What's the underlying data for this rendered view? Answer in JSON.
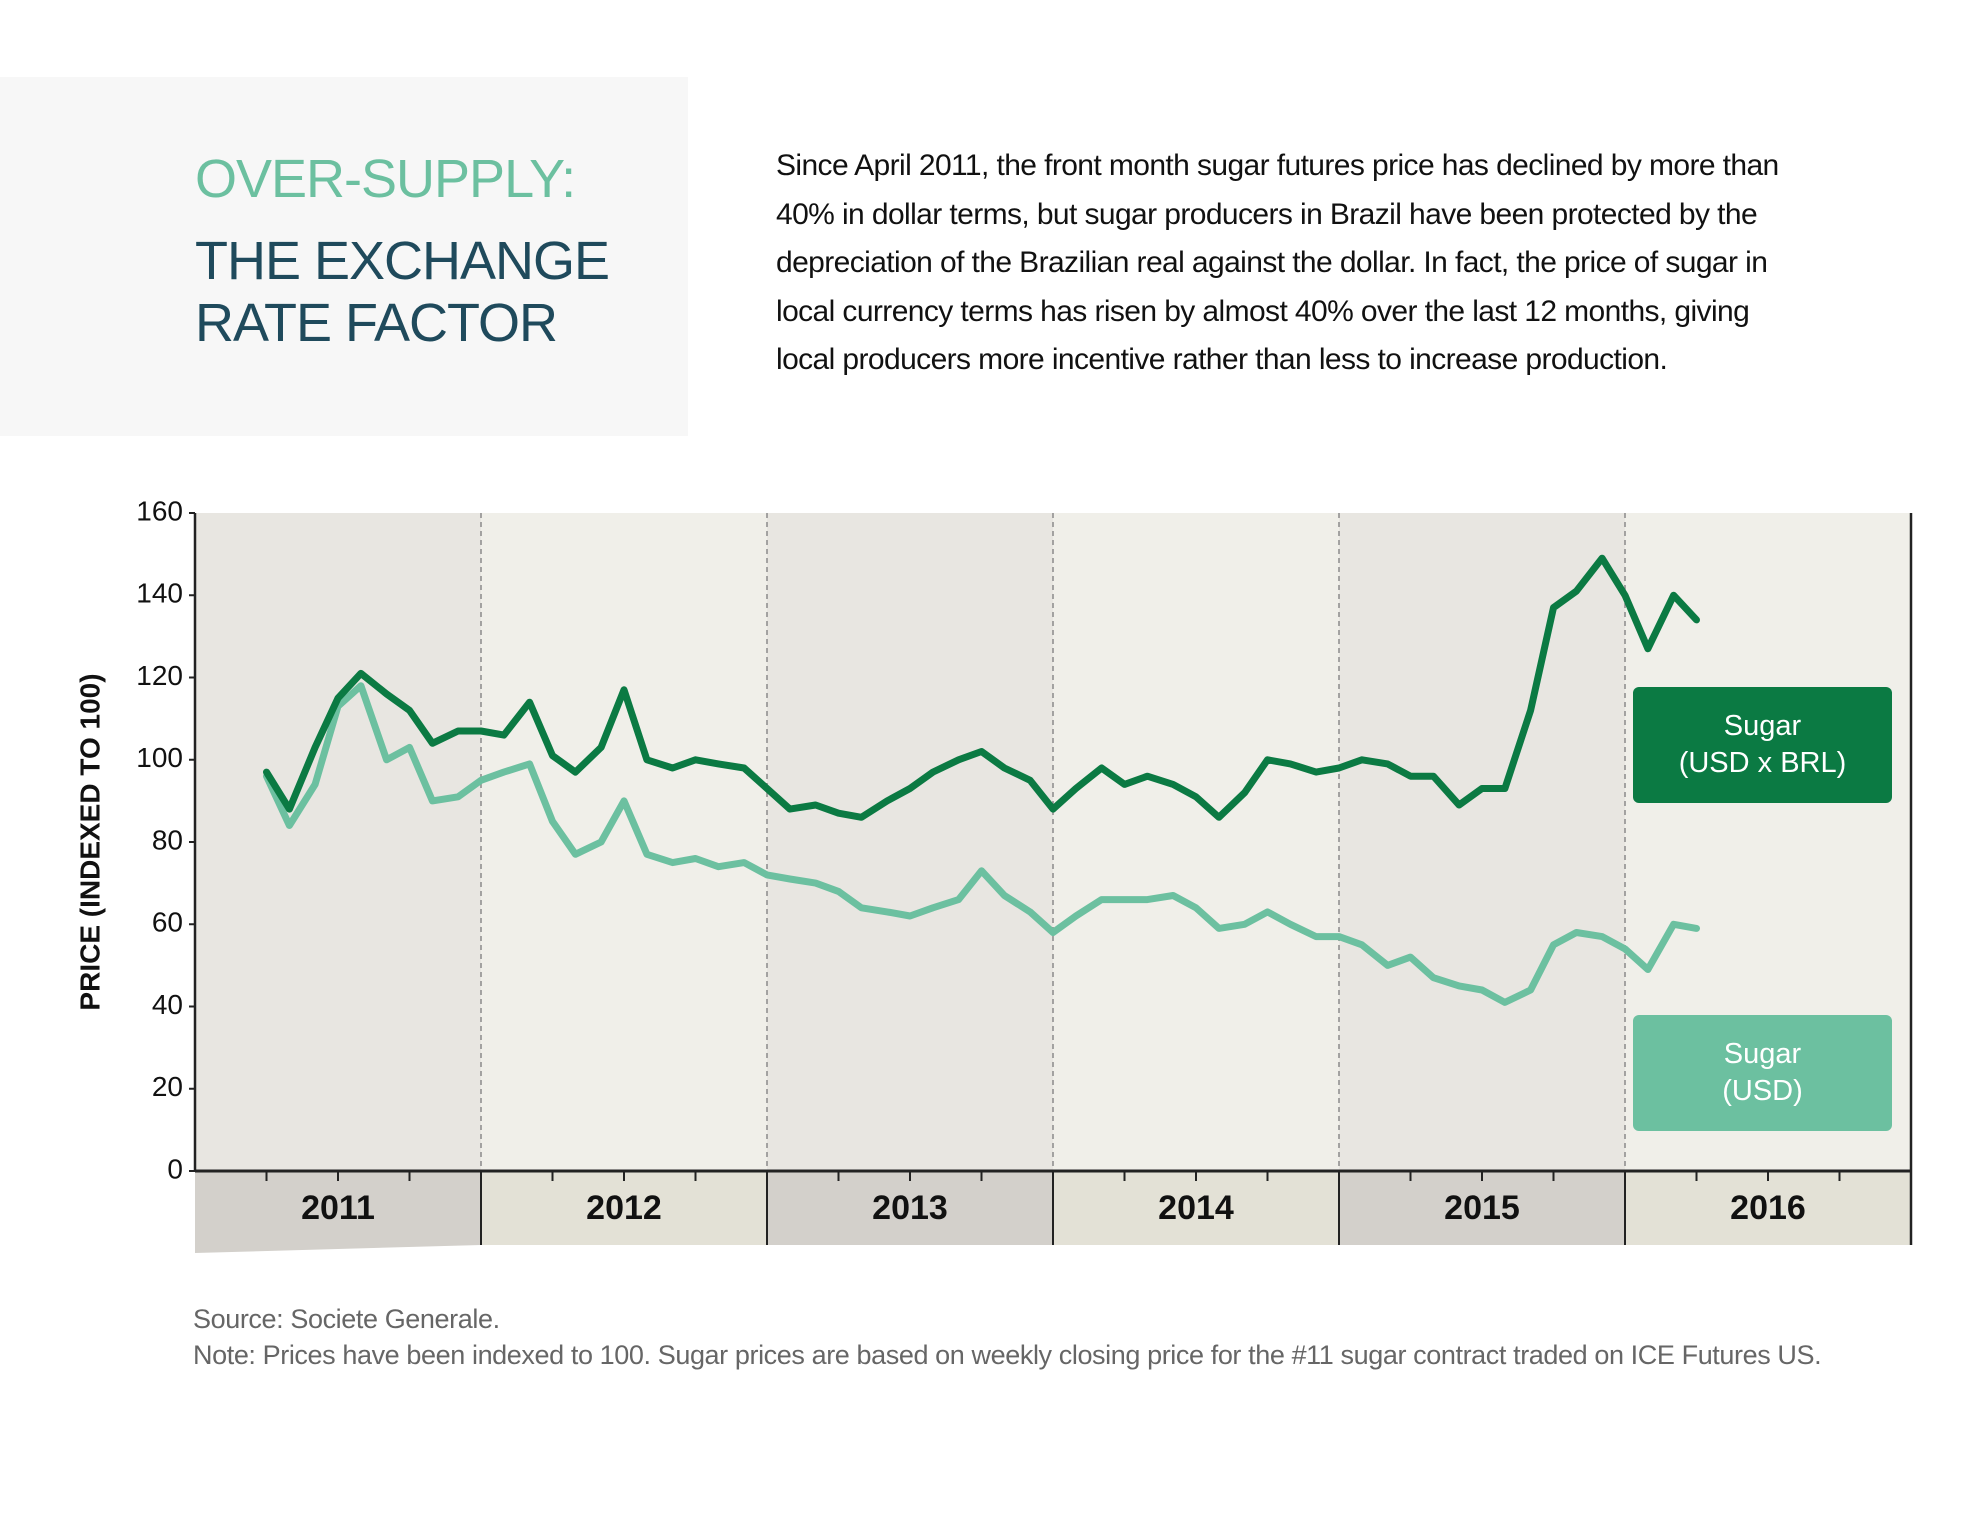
{
  "header": {
    "kicker": "OVER-SUPPLY:",
    "title": "THE EXCHANGE\nRATE FACTOR",
    "description": [
      "Since April 2011, the front month sugar futures price has declined by more than",
      "40% in dollar terms, but sugar producers in Brazil have been protected by the",
      "depreciation of the Brazilian real against the dollar. In fact, the price of sugar in",
      "local currency terms has risen by almost 40% over the last 12 months, giving",
      "local producers more incentive rather than less to increase production."
    ]
  },
  "chart_data": {
    "type": "line",
    "y_label": "PRICE (INDEXED TO 100)",
    "x": [
      2011.25,
      2011.33,
      2011.42,
      2011.5,
      2011.58,
      2011.67,
      2011.75,
      2011.83,
      2011.92,
      2012.0,
      2012.08,
      2012.17,
      2012.25,
      2012.33,
      2012.42,
      2012.5,
      2012.58,
      2012.67,
      2012.75,
      2012.83,
      2012.92,
      2013.0,
      2013.08,
      2013.17,
      2013.25,
      2013.33,
      2013.42,
      2013.5,
      2013.58,
      2013.67,
      2013.75,
      2013.83,
      2013.92,
      2014.0,
      2014.08,
      2014.17,
      2014.25,
      2014.33,
      2014.42,
      2014.5,
      2014.58,
      2014.67,
      2014.75,
      2014.83,
      2014.92,
      2015.0,
      2015.08,
      2015.17,
      2015.25,
      2015.33,
      2015.42,
      2015.5,
      2015.58,
      2015.67,
      2015.75,
      2015.83,
      2015.92,
      2016.0,
      2016.08,
      2016.17,
      2016.25
    ],
    "series": [
      {
        "name": "Sugar\n(USD x BRL)",
        "color": "#0b7a43",
        "values": [
          97,
          88,
          103,
          115,
          121,
          116,
          112,
          104,
          107,
          107,
          106,
          114,
          101,
          97,
          103,
          117,
          100,
          98,
          100,
          99,
          98,
          93,
          88,
          89,
          87,
          86,
          90,
          93,
          97,
          100,
          102,
          98,
          95,
          88,
          93,
          98,
          94,
          96,
          94,
          91,
          86,
          92,
          100,
          99,
          97,
          98,
          100,
          99,
          96,
          96,
          89,
          93,
          93,
          112,
          137,
          141,
          149,
          140,
          127,
          140,
          134
        ]
      },
      {
        "name": "Sugar\n(USD)",
        "color": "#6cc0a0",
        "values": [
          96,
          84,
          94,
          113,
          118,
          100,
          103,
          90,
          91,
          95,
          97,
          99,
          85,
          77,
          80,
          90,
          77,
          75,
          76,
          74,
          75,
          72,
          71,
          70,
          68,
          64,
          63,
          62,
          64,
          66,
          73,
          67,
          63,
          58,
          62,
          66,
          66,
          66,
          67,
          64,
          59,
          60,
          63,
          60,
          57,
          57,
          55,
          50,
          52,
          47,
          45,
          44,
          41,
          44,
          55,
          58,
          57,
          54,
          49,
          60,
          59
        ]
      }
    ],
    "xlim": [
      2011,
      2017
    ],
    "xticks": [
      {
        "value": 2011.5,
        "label": "2011"
      },
      {
        "value": 2012.5,
        "label": "2012"
      },
      {
        "value": 2013.5,
        "label": "2013"
      },
      {
        "value": 2014.5,
        "label": "2014"
      },
      {
        "value": 2015.5,
        "label": "2015"
      },
      {
        "value": 2016.5,
        "label": "2016"
      }
    ],
    "ylim": [
      0,
      160
    ],
    "yticks": [
      0,
      20,
      40,
      60,
      80,
      100,
      120,
      140,
      160
    ],
    "legend": "right",
    "source": "Source: Societe Generale.",
    "note": "Note: Prices have been indexed to 100. Sugar prices are based on weekly closing price for the #11 sugar contract traded on ICE Futures US."
  }
}
